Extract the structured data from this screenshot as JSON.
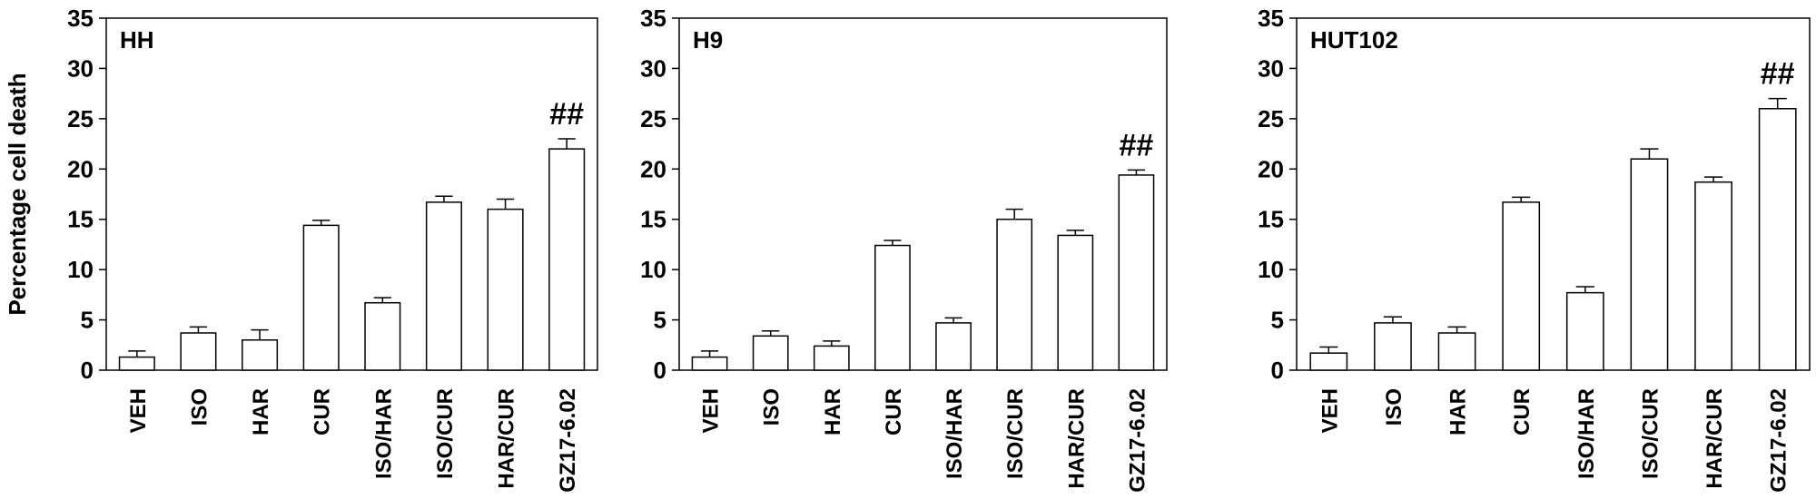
{
  "chart_data": [
    {
      "type": "bar",
      "title": "HH",
      "ylabel": "Percentage cell death",
      "ylim": [
        0,
        35
      ],
      "yticks": [
        0,
        5,
        10,
        15,
        20,
        25,
        30,
        35
      ],
      "categories": [
        "VEH",
        "ISO",
        "HAR",
        "CUR",
        "ISO/HAR",
        "ISO/CUR",
        "HAR/CUR",
        "GZ17-6.02"
      ],
      "values": [
        1.3,
        3.7,
        3.0,
        14.4,
        6.7,
        16.7,
        16.0,
        22.0
      ],
      "errors": [
        0.6,
        0.6,
        1.0,
        0.5,
        0.5,
        0.6,
        1.0,
        1.0
      ],
      "annotations": [
        {
          "category": "GZ17-6.02",
          "text": "##"
        }
      ]
    },
    {
      "type": "bar",
      "title": "H9",
      "ylim": [
        0,
        35
      ],
      "yticks": [
        0,
        5,
        10,
        15,
        20,
        25,
        30,
        35
      ],
      "categories": [
        "VEH",
        "ISO",
        "HAR",
        "CUR",
        "ISO/HAR",
        "ISO/CUR",
        "HAR/CUR",
        "GZ17-6.02"
      ],
      "values": [
        1.3,
        3.4,
        2.4,
        12.4,
        4.7,
        15.0,
        13.4,
        19.4
      ],
      "errors": [
        0.6,
        0.5,
        0.5,
        0.5,
        0.5,
        1.0,
        0.5,
        0.5
      ],
      "annotations": [
        {
          "category": "GZ17-6.02",
          "text": "##"
        }
      ]
    },
    {
      "type": "bar",
      "title": "HUT102",
      "ylim": [
        0,
        35
      ],
      "yticks": [
        0,
        5,
        10,
        15,
        20,
        25,
        30,
        35
      ],
      "categories": [
        "VEH",
        "ISO",
        "HAR",
        "CUR",
        "ISO/HAR",
        "ISO/CUR",
        "HAR/CUR",
        "GZ17-6.02"
      ],
      "values": [
        1.7,
        4.7,
        3.7,
        16.7,
        7.7,
        21.0,
        18.7,
        26.0
      ],
      "errors": [
        0.6,
        0.6,
        0.6,
        0.5,
        0.6,
        1.0,
        0.5,
        1.0
      ],
      "annotations": [
        {
          "category": "GZ17-6.02",
          "text": "##"
        }
      ]
    }
  ]
}
